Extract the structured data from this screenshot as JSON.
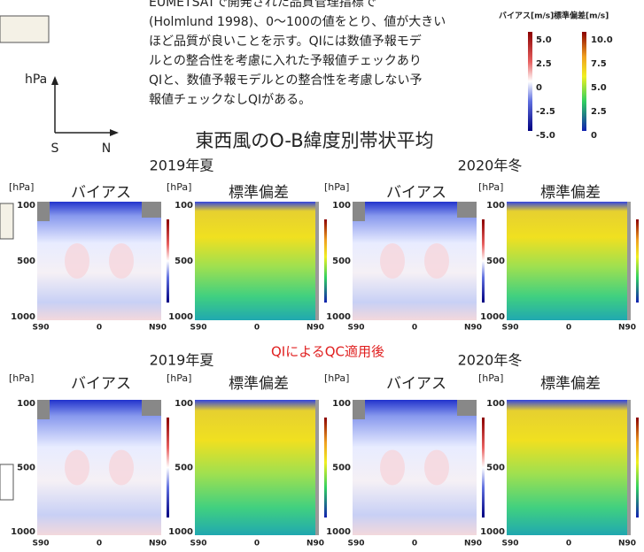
{
  "intro_text": [
    "EUMETSATで開発された品質管理指標で",
    "(Holmlund 1998)、0〜100の値をとり、値が大きい",
    "ほど品質が良いことを示す。QIには数値予報モデ",
    "ルとの整合性を考慮に入れた予報値チェックあり",
    "QIと、数値予報モデルとの整合性を考慮しない予",
    "報値チェックなしQIがある。"
  ],
  "legend": [
    {
      "title": "バイアス[m/s]",
      "ticks": [
        "5.0",
        "2.5",
        "0",
        "-2.5",
        "-5.0"
      ]
    },
    {
      "title": "標準偏差[m/s]",
      "ticks": [
        "10.0",
        "7.5",
        "5.0",
        "2.5",
        "0"
      ]
    }
  ],
  "axis_diagram": {
    "y_label": "hPa",
    "left": "S",
    "right": "N"
  },
  "figure_title": "東西風のO-B緯度別帯状平均",
  "rows": [
    {
      "seasons": [
        "2019年夏",
        "2020年冬"
      ],
      "panels": [
        {
          "unit": "[hPa]",
          "label": "バイアス"
        },
        {
          "unit": "[hPa]",
          "label": "標準偏差"
        },
        {
          "unit": "[hPa]",
          "label": "バイアス"
        },
        {
          "unit": "[hPa]",
          "label": "標準偏差"
        }
      ]
    },
    {
      "seasons": [
        "2019年夏",
        "2020年冬"
      ],
      "note": "QIによるQC適用後",
      "panels": [
        {
          "unit": "[hPa]",
          "label": "バイアス"
        },
        {
          "unit": "[hPa]",
          "label": "標準偏差"
        },
        {
          "unit": "[hPa]",
          "label": "バイアス"
        },
        {
          "unit": "[hPa]",
          "label": "標準偏差"
        }
      ]
    }
  ],
  "panel_axis": {
    "y_ticks": [
      "100",
      "500",
      "1000"
    ],
    "x_ticks": [
      "S90",
      "0",
      "N90"
    ]
  }
}
